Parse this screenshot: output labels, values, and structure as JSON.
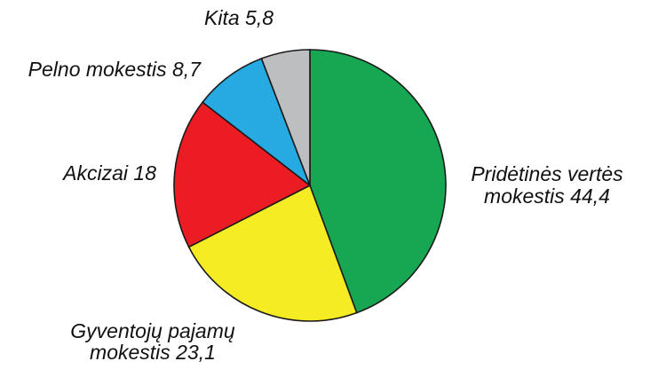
{
  "chart_data": {
    "type": "pie",
    "title": "",
    "slices": [
      {
        "label_lines": [
          "Pridėtinės vertės",
          "mokestis 44,4"
        ],
        "value": 44.4,
        "color": "#17a651"
      },
      {
        "label_lines": [
          "Gyventojų pajamų",
          "mokestis 23,1"
        ],
        "value": 23.1,
        "color": "#f5ec23"
      },
      {
        "label_lines": [
          "Akcizai 18"
        ],
        "value": 18,
        "color": "#ec1c24"
      },
      {
        "label_lines": [
          "Pelno mokestis 8,7"
        ],
        "value": 8.7,
        "color": "#27a9e1"
      },
      {
        "label_lines": [
          "Kita 5,8"
        ],
        "value": 5.8,
        "color": "#bcbec0"
      }
    ]
  }
}
